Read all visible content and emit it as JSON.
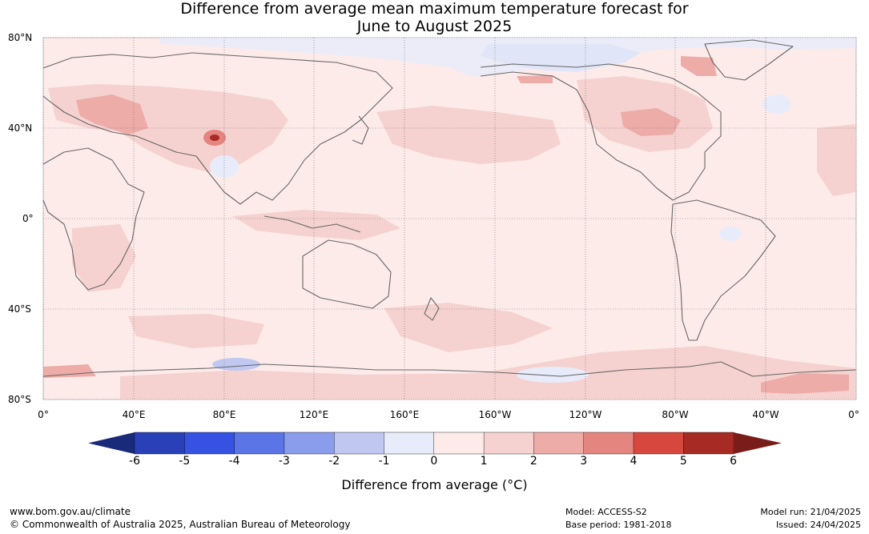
{
  "title": {
    "line1": "Difference from average mean maximum temperature forecast for",
    "line2": "June to August 2025"
  },
  "map": {
    "lat_labels": [
      "80°N",
      "40°N",
      "0°",
      "40°S",
      "80°S"
    ],
    "lon_labels": [
      "0°",
      "40°E",
      "80°E",
      "120°E",
      "160°E",
      "160°W",
      "120°W",
      "80°W",
      "40°W",
      "0°"
    ],
    "base_color": "#fdebea",
    "anomaly_colors": {
      "minus1_to_0": "#e8ecfa",
      "minus2_to_minus1": "#c0c8f2",
      "zero_to_1": "#fdebea",
      "1_to_2": "#f5d2d0",
      "2_to_3": "#edaca8",
      "3_to_4": "#e58580",
      "4_to_5": "#d7473e",
      "5_to_6": "#a82a24"
    }
  },
  "colorbar": {
    "ticks": [
      "-6",
      "-5",
      "-4",
      "-3",
      "-2",
      "-1",
      "0",
      "1",
      "2",
      "3",
      "4",
      "5",
      "6"
    ],
    "colors": [
      "#1a2a7a",
      "#2a40b8",
      "#3552e2",
      "#5b75e6",
      "#8a9cec",
      "#c0c8f2",
      "#e8ecfa",
      "#fdebea",
      "#f5d2d0",
      "#edaca8",
      "#e58580",
      "#d7473e",
      "#a82a24",
      "#7a1c18"
    ],
    "label": "Difference from average (°C)"
  },
  "footer": {
    "url": "www.bom.gov.au/climate",
    "copyright": "© Commonwealth of Australia 2025, Australian Bureau of Meteorology",
    "model": "Model: ACCESS-S2",
    "base_period": "Base period: 1981-2018",
    "model_run": "Model run: 21/04/2025",
    "issued": "Issued: 24/04/2025"
  }
}
